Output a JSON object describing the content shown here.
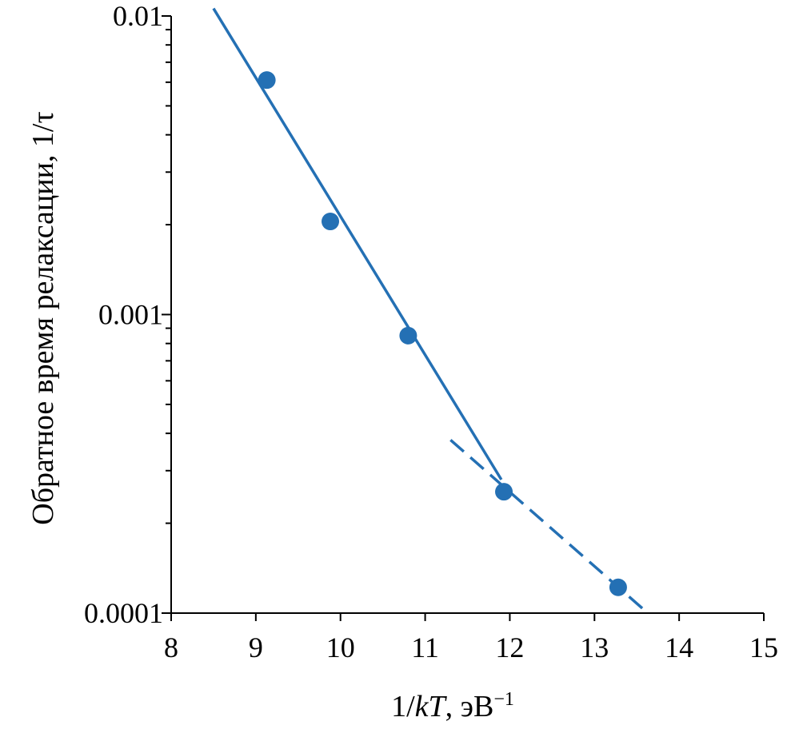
{
  "chart_data": {
    "type": "scatter",
    "title": "",
    "xlabel_parts": [
      "1/",
      "kT",
      ", эВ",
      "−1"
    ],
    "ylabel": "Обратное время релаксации, 1/τ",
    "xlim": [
      8,
      15
    ],
    "ylim": [
      0.0001,
      0.01
    ],
    "yscale": "log",
    "grid": false,
    "x_ticks": [
      8,
      9,
      10,
      11,
      12,
      13,
      14,
      15
    ],
    "x_tick_labels": [
      "8",
      "9",
      "10",
      "11",
      "12",
      "13",
      "14",
      "15"
    ],
    "y_major_ticks": [
      0.0001,
      0.001,
      0.01
    ],
    "y_major_labels": [
      "0.0001",
      "0.001",
      "0.01"
    ],
    "y_minor_ticks": [
      0.0002,
      0.0003,
      0.0004,
      0.0005,
      0.0006,
      0.0007,
      0.0008,
      0.0009,
      0.002,
      0.003,
      0.004,
      0.005,
      0.006,
      0.007,
      0.008,
      0.009
    ],
    "points": [
      {
        "x": 9.13,
        "y": 0.0061
      },
      {
        "x": 9.88,
        "y": 0.00205
      },
      {
        "x": 10.8,
        "y": 0.00085
      },
      {
        "x": 11.93,
        "y": 0.000255
      },
      {
        "x": 13.28,
        "y": 0.000122
      }
    ],
    "fits": [
      {
        "style": "solid",
        "x": [
          8.5,
          11.9
        ],
        "y": [
          0.0106,
          0.00028
        ]
      },
      {
        "style": "dashed",
        "x": [
          11.3,
          13.63
        ],
        "y": [
          0.00038,
          0.0001
        ]
      }
    ],
    "color": "#2470b4"
  }
}
